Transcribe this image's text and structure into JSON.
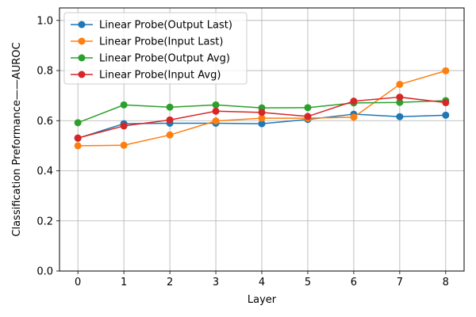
{
  "chart_data": {
    "type": "line",
    "xlabel": "Layer",
    "ylabel": "Classification Preformance——AUROC",
    "x": [
      0,
      1,
      2,
      3,
      4,
      5,
      6,
      7,
      8
    ],
    "xlim": [
      -0.4,
      8.4
    ],
    "ylim": [
      0.0,
      1.05
    ],
    "xticks": [
      0,
      1,
      2,
      3,
      4,
      5,
      6,
      7,
      8
    ],
    "yticks": [
      0.0,
      0.2,
      0.4,
      0.6,
      0.8,
      1.0
    ],
    "ytick_labels": [
      "0.0",
      "0.2",
      "0.4",
      "0.6",
      "0.8",
      "1.0"
    ],
    "grid": true,
    "legend_position": "top-left",
    "series": [
      {
        "name": "Linear Probe(Output Last)",
        "color": "#1f77b4",
        "values": [
          0.53,
          0.588,
          0.59,
          0.59,
          0.588,
          0.605,
          0.626,
          0.616,
          0.622
        ]
      },
      {
        "name": "Linear Probe(Input Last)",
        "color": "#ff7f0e",
        "values": [
          0.5,
          0.502,
          0.543,
          0.599,
          0.61,
          0.61,
          0.614,
          0.745,
          0.799
        ]
      },
      {
        "name": "Linear Probe(Output Avg)",
        "color": "#2ca02c",
        "values": [
          0.592,
          0.663,
          0.654,
          0.663,
          0.651,
          0.652,
          0.671,
          0.673,
          0.68
        ]
      },
      {
        "name": "Linear Probe(Input Avg)",
        "color": "#d62728",
        "values": [
          0.531,
          0.579,
          0.603,
          0.638,
          0.633,
          0.617,
          0.678,
          0.694,
          0.672
        ]
      }
    ]
  }
}
